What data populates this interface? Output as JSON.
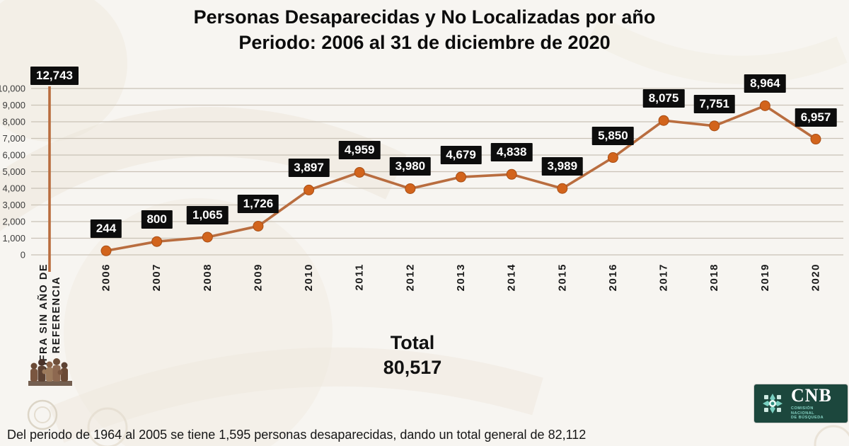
{
  "title": {
    "line1": "Personas Desaparecidas y No Localizadas por año",
    "line2": "Periodo: 2006 al 31 de diciembre de 2020"
  },
  "chart_data": {
    "type": "line",
    "title": "Personas Desaparecidas y No Localizadas por año",
    "subtitle": "Periodo: 2006 al 31 de diciembre de 2020",
    "categories": [
      "2006",
      "2007",
      "2008",
      "2009",
      "2010",
      "2011",
      "2012",
      "2013",
      "2014",
      "2015",
      "2016",
      "2017",
      "2018",
      "2019",
      "2020"
    ],
    "values": [
      244,
      800,
      1065,
      1726,
      3897,
      4959,
      3980,
      4679,
      4838,
      3989,
      5850,
      8075,
      7751,
      8964,
      6957
    ],
    "value_labels": [
      "244",
      "800",
      "1,065",
      "1,726",
      "3,897",
      "4,959",
      "3,980",
      "4,679",
      "4,838",
      "3,989",
      "5,850",
      "8,075",
      "7,751",
      "8,964",
      "6,957"
    ],
    "special_point": {
      "category_label": "CIFRA SIN AÑO DE REFERENCIA",
      "category_label_lines": [
        "CIFRA SIN AÑO DE",
        "REFERENCIA"
      ],
      "value": 12743,
      "value_label": "12,743"
    },
    "xlabel": "",
    "ylabel": "",
    "ylim": [
      0,
      10000
    ],
    "ytick_step": 1000,
    "yticks": [
      0,
      1000,
      2000,
      3000,
      4000,
      5000,
      6000,
      7000,
      8000,
      9000,
      10000
    ],
    "grid": true,
    "legend": "none",
    "line_color": "#b96d3f",
    "marker_color": "#d2641c",
    "marker_edge_color": "#a84e15",
    "grid_color": "#c9c2b6",
    "label_bg": "#0d0d0d",
    "label_fg": "#ffffff"
  },
  "total": {
    "label": "Total",
    "value": "80,517"
  },
  "footnote": "Del periodo de 1964 al 2005 se tiene 1,595 personas desaparecidas, dando un total general de 82,112",
  "cnb_logo": {
    "acronym": "CNB",
    "subtitle_lines": [
      "COMISIÓN",
      "NACIONAL",
      "DE BÚSQUEDA"
    ]
  }
}
